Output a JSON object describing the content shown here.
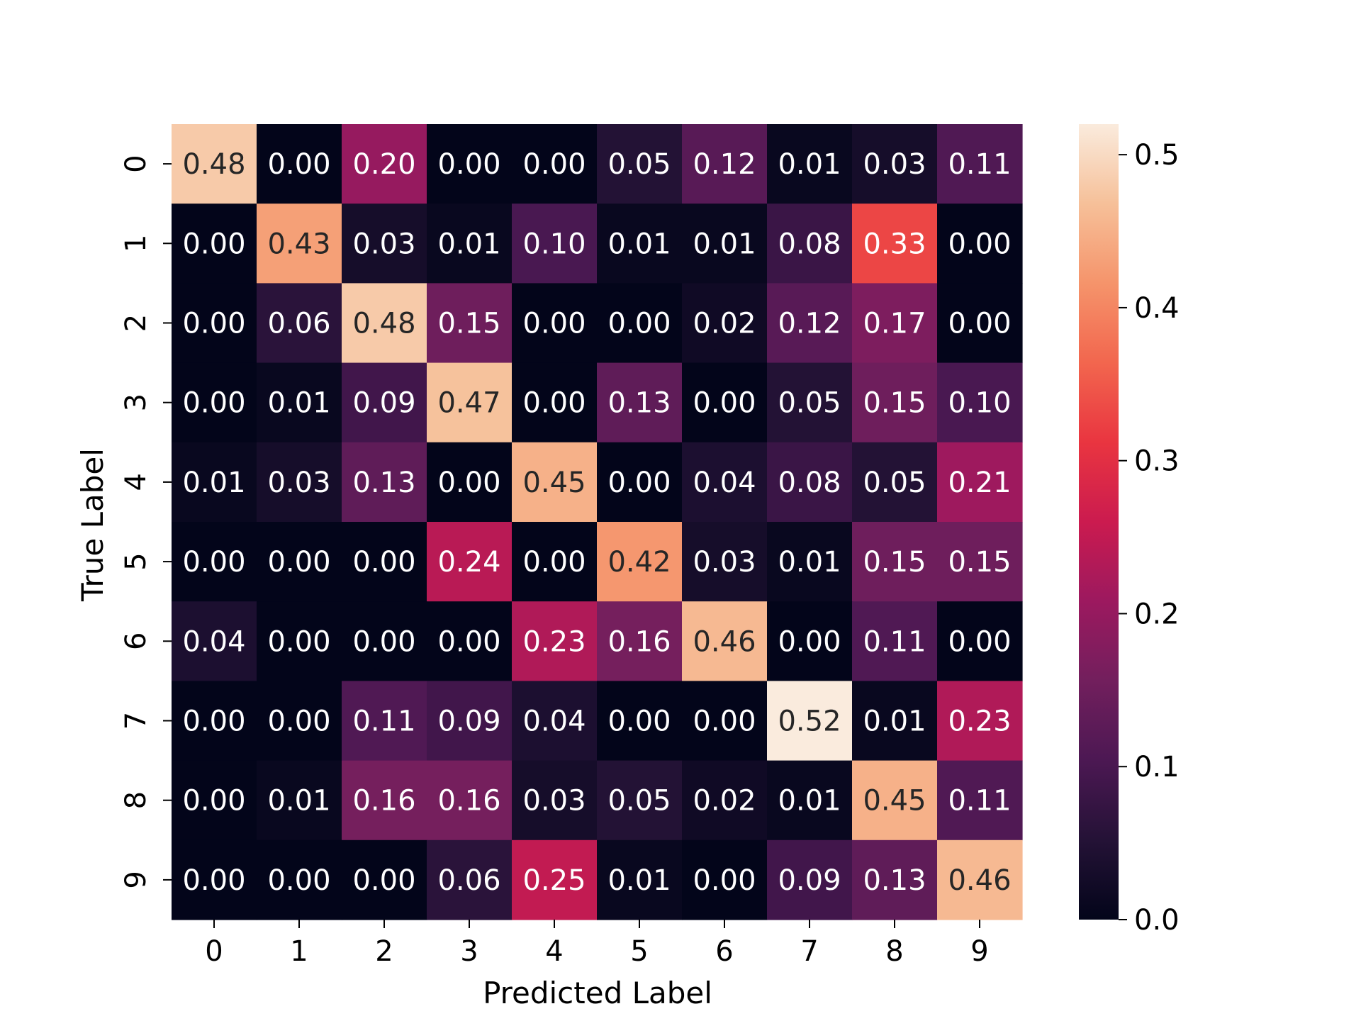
{
  "chart_data": {
    "type": "heatmap",
    "title": "",
    "xlabel": "Predicted Label",
    "ylabel": "True Label",
    "x_categories": [
      "0",
      "1",
      "2",
      "3",
      "4",
      "5",
      "6",
      "7",
      "8",
      "9"
    ],
    "y_categories": [
      "0",
      "1",
      "2",
      "3",
      "4",
      "5",
      "6",
      "7",
      "8",
      "9"
    ],
    "values": [
      [
        0.48,
        0.0,
        0.2,
        0.0,
        0.0,
        0.05,
        0.12,
        0.01,
        0.03,
        0.11
      ],
      [
        0.0,
        0.43,
        0.03,
        0.01,
        0.1,
        0.01,
        0.01,
        0.08,
        0.33,
        0.0
      ],
      [
        0.0,
        0.06,
        0.48,
        0.15,
        0.0,
        0.0,
        0.02,
        0.12,
        0.17,
        0.0
      ],
      [
        0.0,
        0.01,
        0.09,
        0.47,
        0.0,
        0.13,
        0.0,
        0.05,
        0.15,
        0.1
      ],
      [
        0.01,
        0.03,
        0.13,
        0.0,
        0.45,
        0.0,
        0.04,
        0.08,
        0.05,
        0.21
      ],
      [
        0.0,
        0.0,
        0.0,
        0.24,
        0.0,
        0.42,
        0.03,
        0.01,
        0.15,
        0.15
      ],
      [
        0.04,
        0.0,
        0.0,
        0.0,
        0.23,
        0.16,
        0.46,
        0.0,
        0.11,
        0.0
      ],
      [
        0.0,
        0.0,
        0.11,
        0.09,
        0.04,
        0.0,
        0.0,
        0.52,
        0.01,
        0.23
      ],
      [
        0.0,
        0.01,
        0.16,
        0.16,
        0.03,
        0.05,
        0.02,
        0.01,
        0.45,
        0.11
      ],
      [
        0.0,
        0.0,
        0.0,
        0.06,
        0.25,
        0.01,
        0.0,
        0.09,
        0.13,
        0.46
      ]
    ],
    "value_format": "0.00",
    "colormap": "rocket",
    "colorbar": {
      "range": [
        0.0,
        0.52
      ],
      "ticks": [
        0.0,
        0.1,
        0.2,
        0.3,
        0.4,
        0.5
      ],
      "tick_labels": [
        "0.0",
        "0.1",
        "0.2",
        "0.3",
        "0.4",
        "0.5"
      ]
    },
    "grid": false
  }
}
